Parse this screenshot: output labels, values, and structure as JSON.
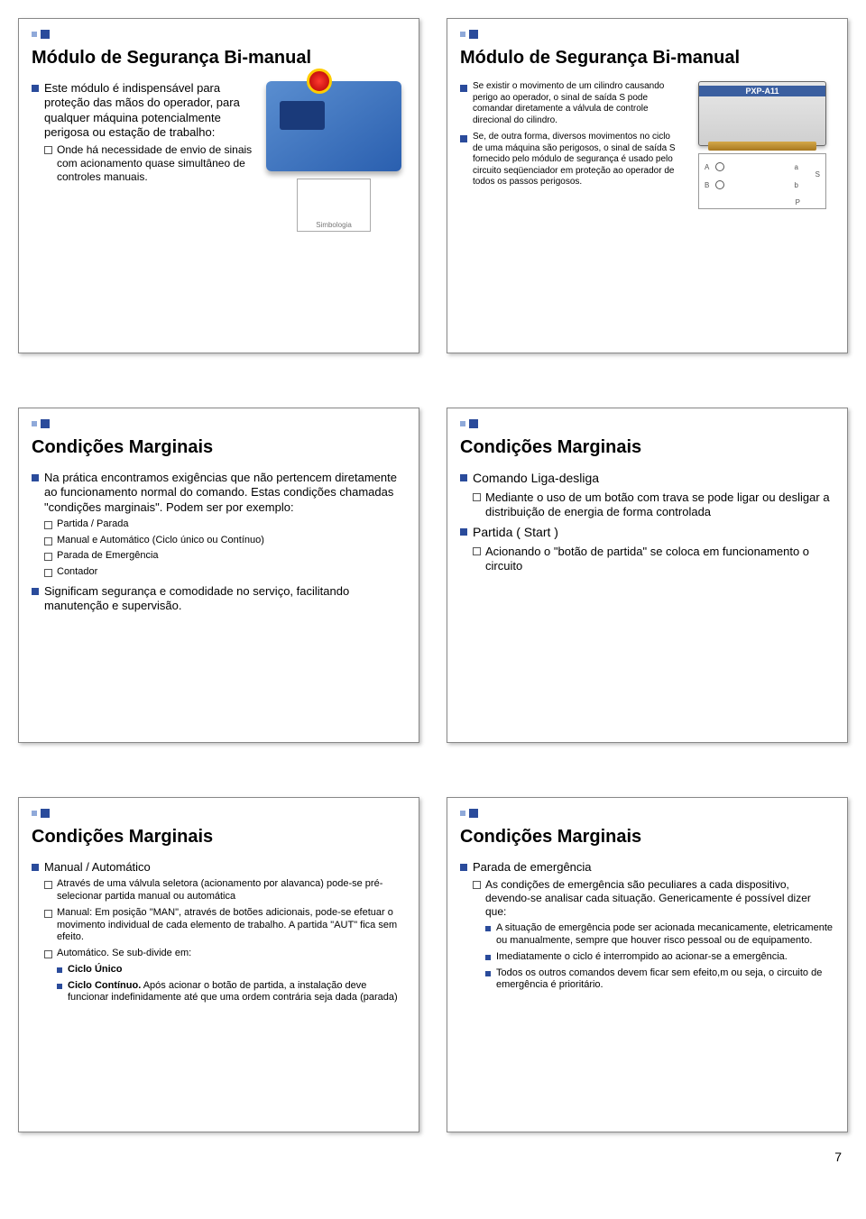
{
  "page_number": "7",
  "slides": [
    {
      "title": "Módulo de Segurança Bi-manual",
      "left": {
        "b1": [
          {
            "text": "Este módulo é indispensável para proteção das mãos do operador, para qualquer máquina potencialmente perigosa ou estação de trabalho:",
            "b2": [
              "Onde há necessidade de envio de sinais com acionamento quase simultâneo de controles manuais."
            ]
          }
        ]
      },
      "img_caption": "Simbologia",
      "has_device": true
    },
    {
      "title": "Módulo de Segurança Bi-manual",
      "left": {
        "b1": [
          {
            "text": "Se existir o movimento de um cilindro causando perigo ao operador, o sinal de saída S pode comandar diretamente a válvula de controle direcional do cilindro."
          },
          {
            "text": "Se, de outra forma, diversos movimentos no ciclo de uma máquina são perigosos, o sinal de saída S fornecido pelo módulo de segurança é usado pelo circuito seqüenciador em proteção ao operador de todos os passos perigosos."
          }
        ]
      },
      "has_module": true
    },
    {
      "title": "Condições Marginais",
      "full": {
        "b1": [
          {
            "text": "Na prática encontramos exigências que não pertencem diretamente ao funcionamento normal do comando. Estas condições chamadas \"condições marginais\". Podem ser por exemplo:",
            "b2": [
              "Partida / Parada",
              "Manual e Automático (Ciclo único ou Contínuo)",
              "Parada de Emergência",
              "Contador"
            ]
          },
          {
            "text": "Significam segurança e comodidade no serviço, facilitando manutenção e supervisão."
          }
        ]
      }
    },
    {
      "title": "Condições Marginais",
      "full": {
        "b1": [
          {
            "text": "Comando Liga-desliga",
            "b2": [
              "Mediante o uso de um botão com trava se pode ligar ou desligar a distribuição de energia de forma controlada"
            ]
          },
          {
            "text": "Partida ( Start )",
            "b2": [
              "Acionando o \"botão de partida\" se coloca em funcionamento o circuito"
            ]
          }
        ]
      }
    },
    {
      "title": "Condições Marginais",
      "full": {
        "b1": [
          {
            "text": "Manual /  Automático",
            "b2": [
              "Através de uma válvula seletora (acionamento por alavanca) pode-se pré-selecionar partida manual ou automática",
              "Manual: Em posição \"MAN\", através de botões adicionais, pode-se efetuar o movimento individual de cada elemento de trabalho. A partida \"AUT\" fica sem efeito.",
              {
                "text": "Automático. Se sub-divide em:",
                "b3": [
                  "Ciclo Único",
                  "Ciclo Contínuo. Após acionar o botão de partida, a instalação deve funcionar indefinidamente até que uma ordem contrária seja dada (parada)"
                ],
                "b3_first_bold": true
              }
            ]
          }
        ]
      }
    },
    {
      "title": "Condições Marginais",
      "full": {
        "b1": [
          {
            "text": "Parada de emergência",
            "b2": [
              {
                "text": "As condições de emergência são peculiares a cada dispositivo, devendo-se analisar cada situação. Genericamente é possível dizer que:",
                "b3": [
                  "A situação de emergência pode ser acionada mecanicamente, eletricamente ou manualmente, sempre que houver risco pessoal ou de equipamento.",
                  "Imediatamente o ciclo é interrompido ao acionar-se a emergência.",
                  "Todos os outros comandos devem ficar sem efeito,m ou seja, o circuito de emergência é prioritário."
                ]
              }
            ]
          }
        ]
      }
    }
  ]
}
